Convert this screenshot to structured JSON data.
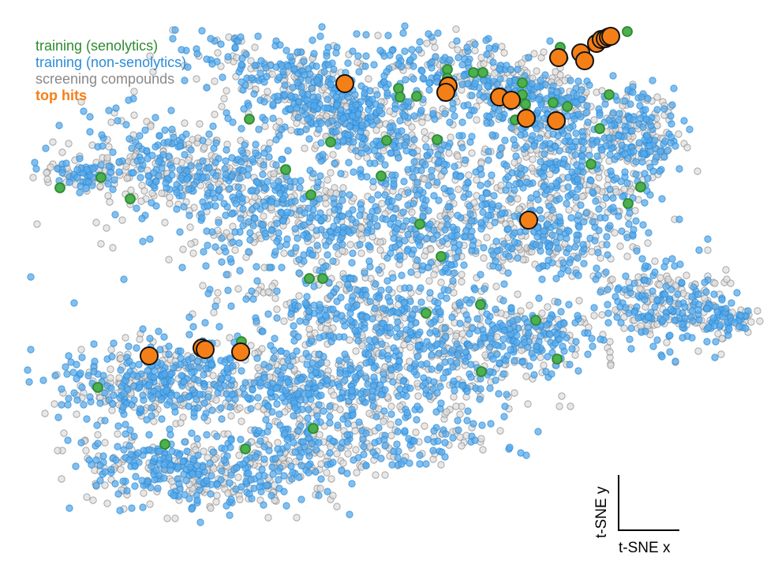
{
  "chart_data": {
    "type": "scatter",
    "title": "",
    "xlabel": "t-SNE x",
    "ylabel": "t-SNE y",
    "grid": false,
    "legend_position": "top-left",
    "series": [
      {
        "name": "training (senolytics)",
        "color": "#2e8b2e",
        "fill": "#4caf50",
        "points": [
          [
            76,
            238
          ],
          [
            128,
            225
          ],
          [
            165,
            252
          ],
          [
            316,
            151
          ],
          [
            362,
            215
          ],
          [
            394,
            247
          ],
          [
            419,
            180
          ],
          [
            490,
            178
          ],
          [
            483,
            223
          ],
          [
            505,
            112
          ],
          [
            507,
            123
          ],
          [
            528,
            122
          ],
          [
            567,
            88
          ],
          [
            567,
            99
          ],
          [
            600,
            92
          ],
          [
            612,
            92
          ],
          [
            554,
            177
          ],
          [
            532,
            284
          ],
          [
            559,
            325
          ],
          [
            392,
            353
          ],
          [
            409,
            353
          ],
          [
            540,
            397
          ],
          [
            609,
            386
          ],
          [
            679,
            406
          ],
          [
            706,
            455
          ],
          [
            610,
            471
          ],
          [
            662,
            105
          ],
          [
            662,
            120
          ],
          [
            666,
            132
          ],
          [
            653,
            152
          ],
          [
            701,
            130
          ],
          [
            719,
            135
          ],
          [
            772,
            120
          ],
          [
            760,
            163
          ],
          [
            749,
            208
          ],
          [
            812,
            237
          ],
          [
            796,
            258
          ],
          [
            710,
            60
          ],
          [
            795,
            40
          ],
          [
            306,
            433
          ],
          [
            124,
            491
          ],
          [
            209,
            563
          ],
          [
            311,
            569
          ],
          [
            397,
            543
          ]
        ]
      },
      {
        "name": "training (non-senolytics)",
        "color": "#2b8cd8",
        "fill": "#5aaae8",
        "points": []
      },
      {
        "name": "screening compounds",
        "color": "#888888",
        "fill": "#dddddd",
        "points": []
      },
      {
        "name": "top hits",
        "color": "#111111",
        "fill": "#f57f17",
        "points": [
          [
            437,
            106
          ],
          [
            568,
            109
          ],
          [
            565,
            117
          ],
          [
            633,
            123
          ],
          [
            648,
            127
          ],
          [
            667,
            150
          ],
          [
            705,
            153
          ],
          [
            670,
            279
          ],
          [
            708,
            73
          ],
          [
            736,
            67
          ],
          [
            741,
            77
          ],
          [
            756,
            55
          ],
          [
            762,
            50
          ],
          [
            767,
            49
          ],
          [
            771,
            47
          ],
          [
            774,
            46
          ],
          [
            189,
            451
          ],
          [
            256,
            441
          ],
          [
            260,
            443
          ],
          [
            305,
            446
          ]
        ]
      }
    ]
  },
  "scale_bar": {
    "x_label": "t-SNE x",
    "y_label": "t-SNE y"
  }
}
